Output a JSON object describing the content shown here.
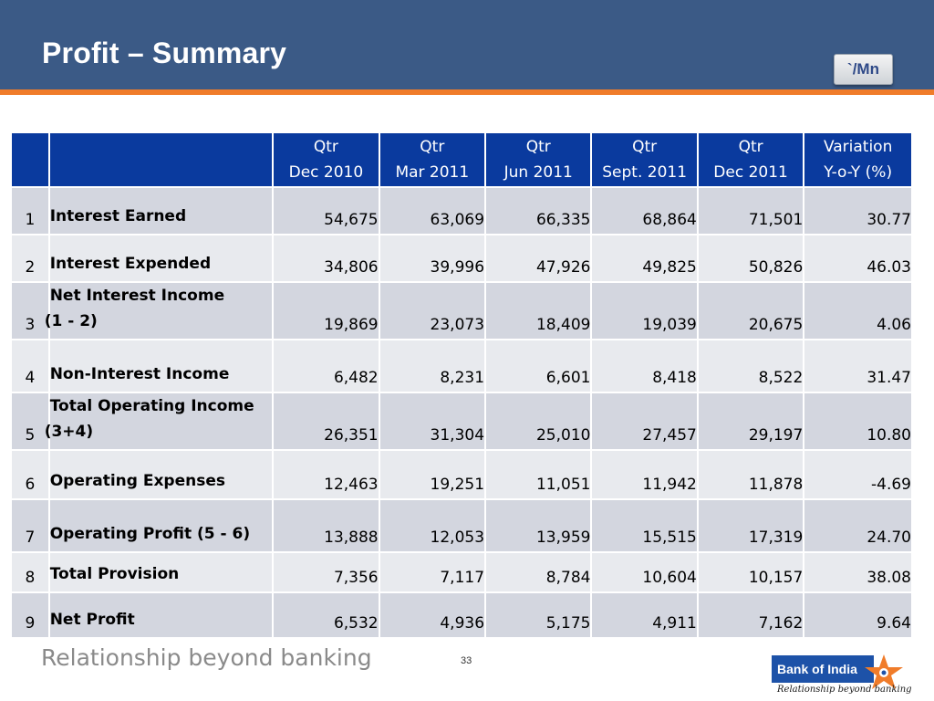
{
  "header": {
    "title": "Profit – Summary",
    "unit": "`/Mn"
  },
  "table": {
    "columns": [
      {
        "line1": "Qtr",
        "line2": "Dec 2010"
      },
      {
        "line1": "Qtr",
        "line2": "Mar 2011"
      },
      {
        "line1": "Qtr",
        "line2": "Jun 2011"
      },
      {
        "line1": "Qtr",
        "line2": "Sept. 2011"
      },
      {
        "line1": "Qtr",
        "line2": "Dec 2011"
      },
      {
        "line1": "Variation",
        "line2": "Y-o-Y (%)"
      }
    ],
    "rows": [
      {
        "num": "1",
        "label1": "Interest Earned",
        "label2": "",
        "values": [
          "54,675",
          "63,069",
          "66,335",
          "68,864",
          "71,501"
        ],
        "variation": "30.77"
      },
      {
        "num": "2",
        "label1": "Interest  Expended",
        "label2": "",
        "values": [
          "34,806",
          "39,996",
          "47,926",
          "49,825",
          "50,826"
        ],
        "variation": "46.03"
      },
      {
        "num": "3",
        "label1": "Net Interest Income",
        "label2": "(1 - 2)",
        "values": [
          "19,869",
          "23,073",
          "18,409",
          "19,039",
          "20,675"
        ],
        "variation": "4.06"
      },
      {
        "num": "4",
        "label1": "Non-Interest Income",
        "label2": "",
        "values": [
          "6,482",
          "8,231",
          "6,601",
          "8,418",
          "8,522"
        ],
        "variation": "31.47"
      },
      {
        "num": "5",
        "label1": "Total Operating Income",
        "label2": "(3+4)",
        "values": [
          "26,351",
          "31,304",
          "25,010",
          "27,457",
          "29,197"
        ],
        "variation": "10.80"
      },
      {
        "num": "6",
        "label1": "Operating Expenses",
        "label2": "",
        "values": [
          "12,463",
          "19,251",
          "11,051",
          "11,942",
          "11,878"
        ],
        "variation": "-4.69"
      },
      {
        "num": "7",
        "label1": "Operating Profit (5 - 6)",
        "label2": "",
        "values": [
          "13,888",
          "12,053",
          "13,959",
          "15,515",
          "17,319"
        ],
        "variation": "24.70"
      },
      {
        "num": "8",
        "label1": "Total Provision",
        "label2": "",
        "values": [
          "7,356",
          "7,117",
          "8,784",
          "10,604",
          "10,157"
        ],
        "variation": "38.08"
      },
      {
        "num": "9",
        "label1": "Net Profit",
        "label2": "",
        "values": [
          "6,532",
          "4,936",
          "5,175",
          "4,911",
          "7,162"
        ],
        "variation": "9.64"
      }
    ]
  },
  "footer": {
    "tagline": "Relationship beyond banking",
    "page_number": "33",
    "logo_name": "Bank of India",
    "logo_tagline": "Relationship beyond banking"
  },
  "colors": {
    "header_bg": "#3b5a86",
    "header_rule": "#f07c2a",
    "table_header_bg": "#0a3a9e",
    "row_odd": "#d3d6df",
    "row_even": "#e8eaee"
  }
}
